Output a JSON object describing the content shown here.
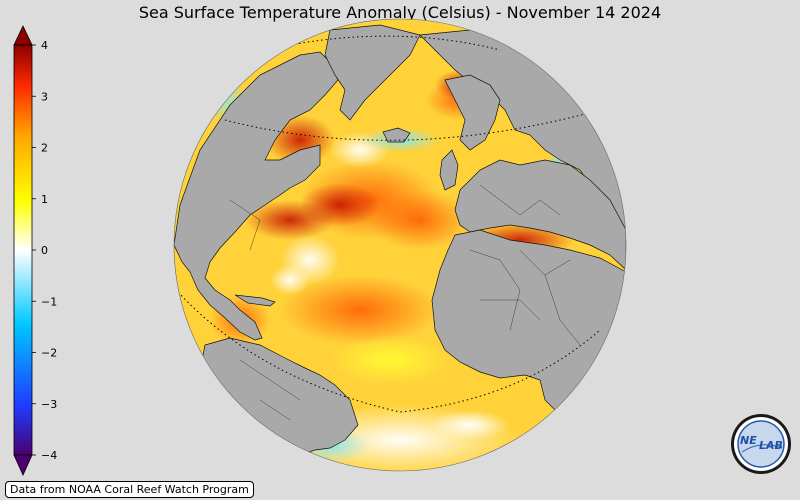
{
  "title": "Sea Surface Temperature Anomaly (Celsius) - November 14 2024",
  "credit": "Data from NOAA Coral Reef Watch Program",
  "logo": {
    "text_left": "NE",
    "text_right": "LAB"
  },
  "colorbar": {
    "min": -4,
    "max": 4,
    "ticks": [
      "4",
      "3",
      "2",
      "1",
      "0",
      "−1",
      "−2",
      "−3",
      "−4"
    ],
    "stops": [
      "#4b006e",
      "#1e3cff",
      "#00c8ff",
      "#ffffff",
      "#ffff00",
      "#ffa500",
      "#ff2a00",
      "#8b0000"
    ]
  },
  "map_colors": {
    "background": "#dcdcdc",
    "land": "#a9a9a9",
    "ocean_base": "#ffd23a",
    "warm": "#ff7a00",
    "hot": "#d21e00",
    "cool": "#ffffff",
    "cold": "#7fe8ff"
  }
}
